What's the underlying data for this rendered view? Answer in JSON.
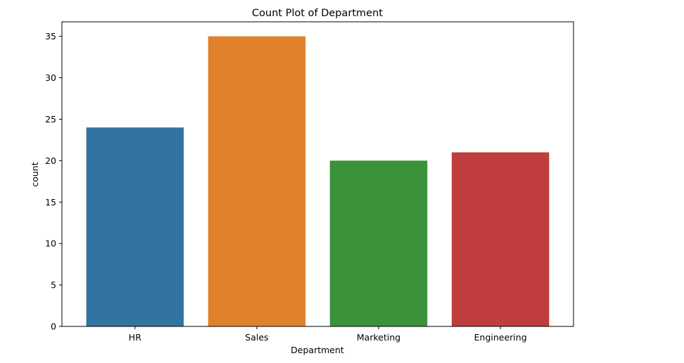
{
  "chart_data": {
    "type": "bar",
    "title": "Count Plot of Department",
    "xlabel": "Department",
    "ylabel": "count",
    "categories": [
      "HR",
      "Sales",
      "Marketing",
      "Engineering"
    ],
    "values": [
      24,
      35,
      20,
      21
    ],
    "colors": [
      "#3274a1",
      "#e1812c",
      "#3a923a",
      "#c03d3e"
    ],
    "ylim": [
      0,
      36.75
    ],
    "yticks": [
      0,
      5,
      10,
      15,
      20,
      25,
      30,
      35
    ],
    "grid": false,
    "legend": "none"
  }
}
